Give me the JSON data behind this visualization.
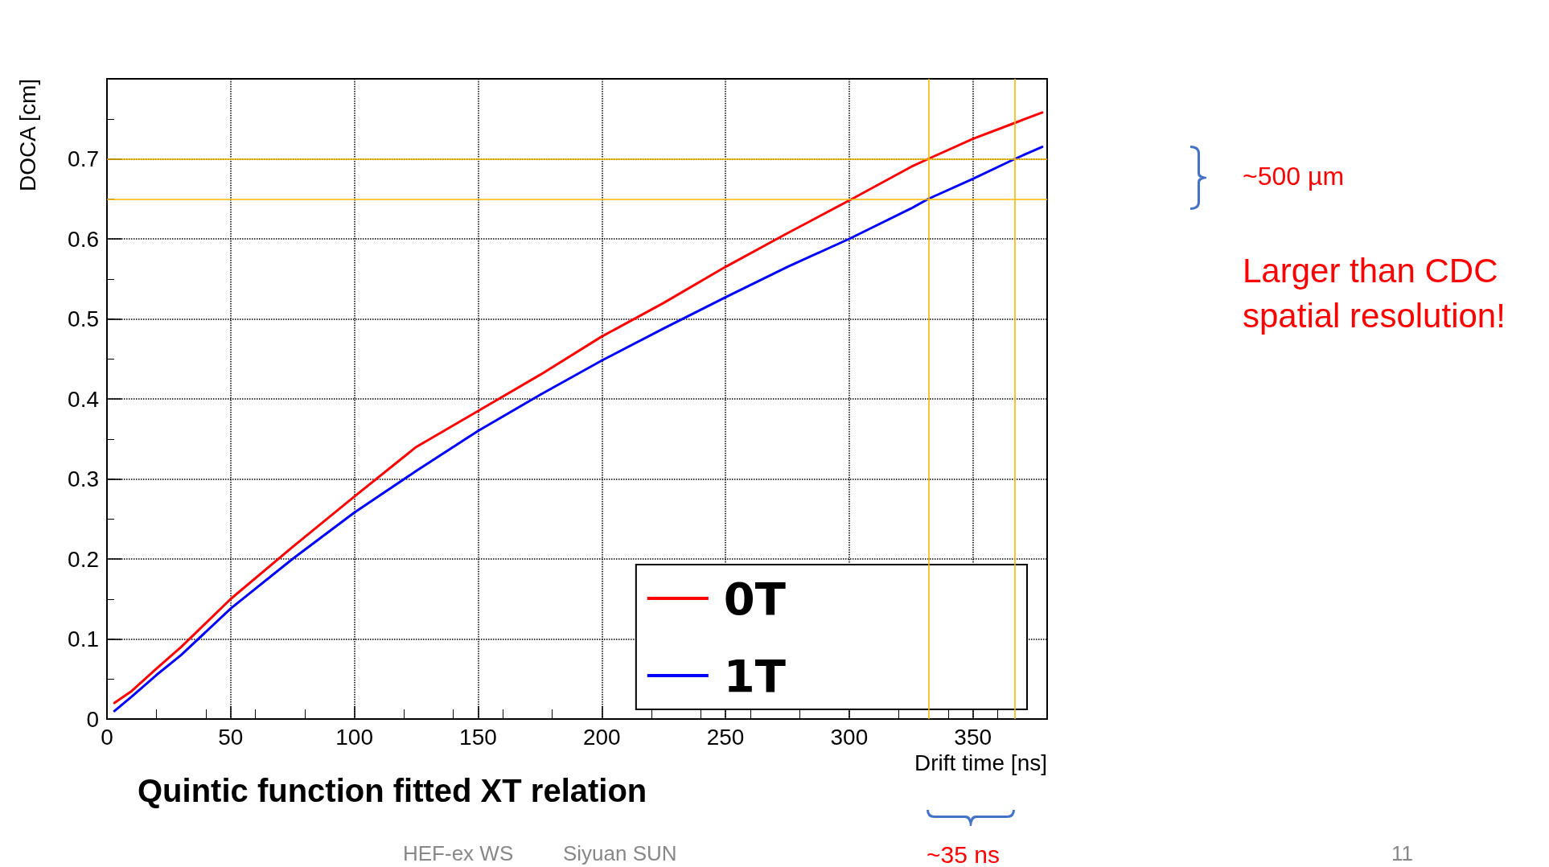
{
  "chart_data": {
    "type": "line",
    "title": "Quintic function fitted XT relation",
    "xlabel": "Drift time [ns]",
    "ylabel": "DOCA [cm]",
    "x": [
      3,
      10,
      20,
      30,
      50,
      75,
      100,
      125,
      150,
      175,
      200,
      225,
      250,
      275,
      300,
      325,
      332,
      350,
      367,
      378
    ],
    "series": [
      {
        "name": "0T",
        "color": "#ff0000",
        "values": [
          0.02,
          0.035,
          0.063,
          0.09,
          0.15,
          0.215,
          0.278,
          0.34,
          0.385,
          0.43,
          0.478,
          0.52,
          0.565,
          0.607,
          0.648,
          0.69,
          0.7,
          0.725,
          0.745,
          0.758
        ]
      },
      {
        "name": "1T",
        "color": "#0000ff",
        "values": [
          0.01,
          0.028,
          0.055,
          0.08,
          0.138,
          0.2,
          0.258,
          0.31,
          0.36,
          0.405,
          0.448,
          0.488,
          0.527,
          0.565,
          0.6,
          0.638,
          0.65,
          0.675,
          0.7,
          0.715
        ]
      }
    ],
    "xlim": [
      0,
      380
    ],
    "xticks": [
      0,
      50,
      100,
      150,
      200,
      250,
      300,
      350
    ],
    "ylim": [
      0,
      0.8
    ],
    "yticks": [
      0,
      0.1,
      0.2,
      0.3,
      0.4,
      0.5,
      0.6,
      0.7
    ],
    "ref_lines": [
      {
        "axis": "x",
        "value": 332,
        "color": "#f5b800",
        "line_style": "solid"
      },
      {
        "axis": "x",
        "value": 367,
        "color": "#f5b800",
        "line_style": "solid"
      },
      {
        "axis": "y",
        "value": 0.7,
        "color": "#f5b800",
        "line_style": "solid"
      },
      {
        "axis": "y",
        "value": 0.65,
        "color": "#f5b800",
        "line_style": "solid"
      }
    ],
    "annotations": [
      "~500 µm",
      "Larger than CDC\nspatial resolution!",
      "~35 ns",
      "HEF-ex WS",
      "Siyuan SUN",
      "11"
    ],
    "grid": true,
    "legend": "bottom right",
    "marker": "none",
    "line_style": "solid"
  }
}
